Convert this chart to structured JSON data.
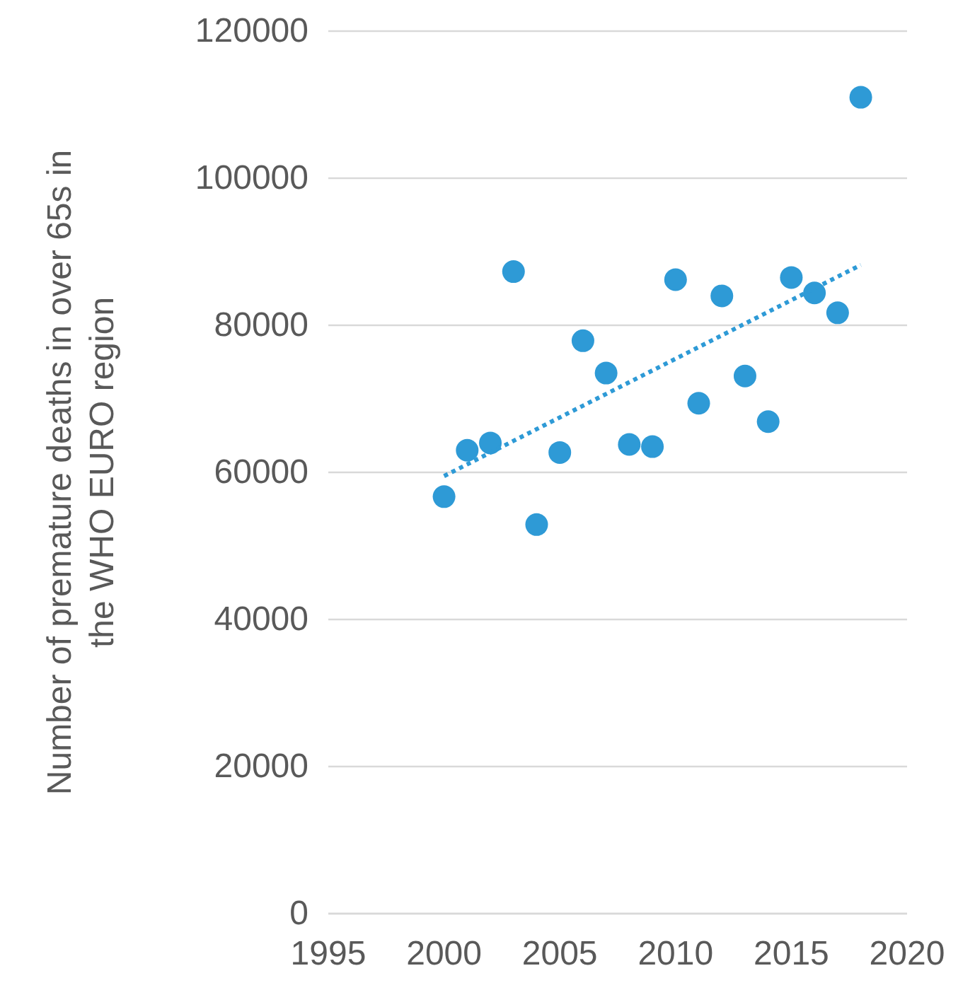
{
  "chart_data": {
    "type": "scatter",
    "ylabel": "Number of premature deaths in over 65s in the WHO EURO region",
    "xlim": [
      1995,
      2020
    ],
    "xticks": [
      1995,
      2000,
      2005,
      2010,
      2015,
      2020
    ],
    "ylim": [
      0,
      120000
    ],
    "yticks": [
      0,
      20000,
      40000,
      60000,
      80000,
      100000,
      120000
    ],
    "grid": "y",
    "series": [
      {
        "marker": "circle",
        "color": "#2e9ad6",
        "x": [
          2000,
          2001,
          2002,
          2003,
          2004,
          2005,
          2006,
          2007,
          2008,
          2009,
          2010,
          2011,
          2012,
          2013,
          2014,
          2015,
          2016,
          2017,
          2018
        ],
        "values": [
          56700,
          63000,
          64000,
          87300,
          52900,
          62700,
          77900,
          73500,
          63800,
          63500,
          86200,
          69400,
          84000,
          73100,
          66900,
          86500,
          84400,
          81700,
          111000
        ]
      },
      {
        "type": "line",
        "marker": "none",
        "color": "#2e9ad6",
        "line_style": "dotted",
        "x": [
          2000,
          2018
        ],
        "values": [
          59500,
          88200
        ]
      }
    ]
  }
}
